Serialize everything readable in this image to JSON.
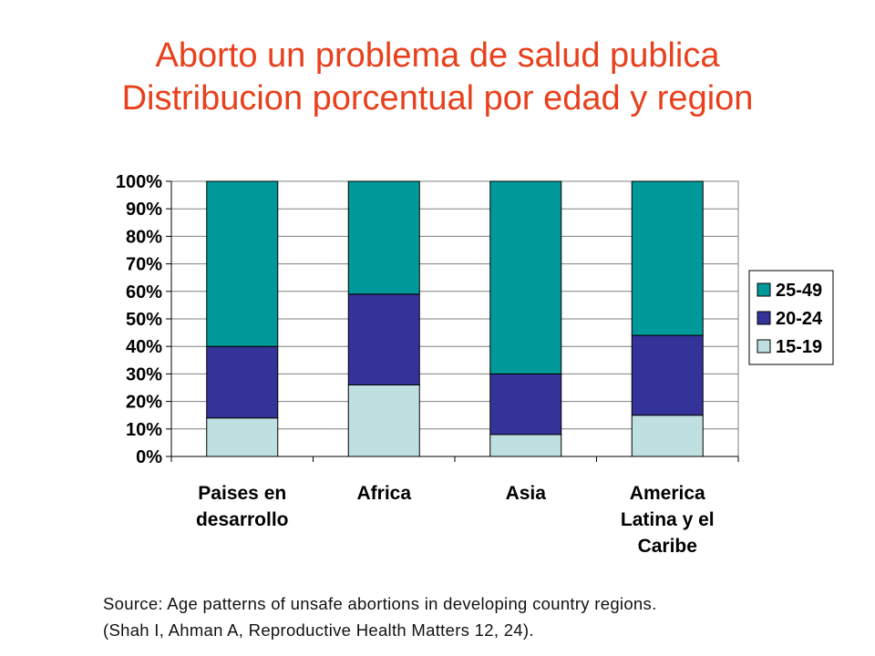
{
  "slide": {
    "title_line1": "Aborto un problema de salud publica",
    "title_line2": "Distribucion porcentual por edad y region",
    "source_line1": "Source: Age patterns of unsafe abortions in developing country regions.",
    "source_line2": "(Shah I, Ahman A, Reproductive Health Matters 12, 24)."
  },
  "chart_data": {
    "type": "bar",
    "stacked": true,
    "categories": [
      [
        "Paises en",
        "desarrollo"
      ],
      [
        "Africa"
      ],
      [
        "Asia"
      ],
      [
        "America",
        "Latina y el",
        "Caribe"
      ]
    ],
    "series": [
      {
        "name": "15-19",
        "color": "#bfe0e0",
        "values": [
          14,
          26,
          8,
          15
        ]
      },
      {
        "name": "20-24",
        "color": "#343399",
        "values": [
          26,
          33,
          22,
          29
        ]
      },
      {
        "name": "25-49",
        "color": "#009999",
        "values": [
          60,
          41,
          70,
          56
        ]
      }
    ],
    "legend_order": [
      "25-49",
      "20-24",
      "15-19"
    ],
    "legend_position": "right",
    "ylim": [
      0,
      100
    ],
    "yticks": [
      "0%",
      "10%",
      "20%",
      "30%",
      "40%",
      "50%",
      "60%",
      "70%",
      "80%",
      "90%",
      "100%"
    ],
    "xlabel": "",
    "ylabel": "",
    "grid": true
  }
}
